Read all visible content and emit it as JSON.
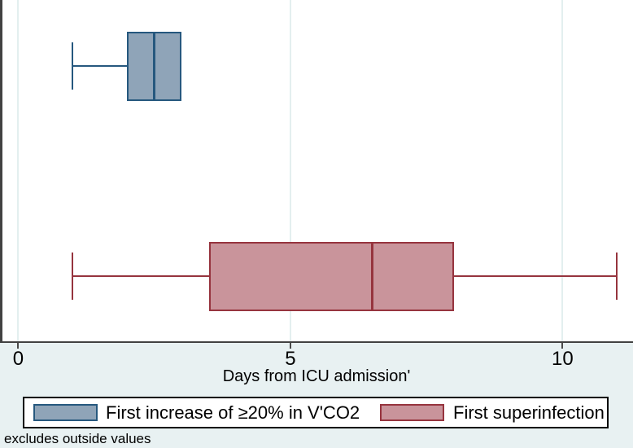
{
  "figure": {
    "colors": {
      "background": "#e8f1f2",
      "plot_background": "#ffffff",
      "gridline": "#e3efef",
      "axis": "#424242",
      "text": "#000000",
      "legend_border": "#000000"
    }
  },
  "chart_data": {
    "type": "boxplot",
    "orientation": "horizontal",
    "title": "",
    "xlabel": "Days from ICU admission'",
    "ylabel": "",
    "x_ticks": [
      0,
      5,
      10
    ],
    "xlim": [
      -0.335,
      11.295
    ],
    "grid": true,
    "legend_position": "bottom",
    "note": "excludes outside values",
    "series": [
      {
        "name": "First increase of ≥20% in V'CO2",
        "fill": "#8fa4b8",
        "border": "#26587e",
        "whisker_low": 1,
        "q1": 2,
        "median": 2.5,
        "q3": 3,
        "whisker_high": 3
      },
      {
        "name": "First superinfection",
        "fill": "#c9949b",
        "border": "#96343e",
        "whisker_low": 1,
        "q1": 3.5,
        "median": 6.5,
        "q3": 8,
        "whisker_high": 11
      }
    ]
  }
}
